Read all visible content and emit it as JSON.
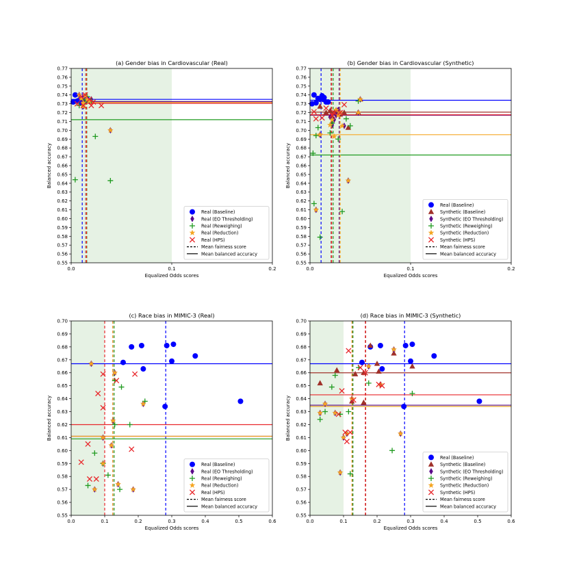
{
  "figure": {
    "legend_items": {
      "mean_fairness": "Mean fairness score",
      "mean_accuracy": "Mean balanced accuracy"
    }
  },
  "styles": {
    "real_baseline": {
      "color": "#0000ff",
      "marker": "circle"
    },
    "synthetic_baseline": {
      "color": "#a0312a",
      "marker": "triangle"
    },
    "eo_thresholding": {
      "color": "#5b0a8a",
      "marker": "diamond"
    },
    "reweighing": {
      "color": "#1f9a1f",
      "marker": "plus"
    },
    "reduction": {
      "color": "#f5a623",
      "marker": "star"
    },
    "hps": {
      "color": "#e8262a",
      "marker": "x"
    },
    "fair_zone": "#e6f2e4"
  },
  "chart_data": [
    {
      "type": "scatter",
      "title": "(a) Gender bias in Cardiovascular (Real)",
      "xlabel": "Equalized Odds scores",
      "ylabel": "Balanced accuracy",
      "xlim": [
        0,
        0.2
      ],
      "ylim": [
        0.55,
        0.77
      ],
      "xticks": [
        0,
        0.1,
        0.2
      ],
      "xtick_labels": [
        "0.0",
        "0.1",
        "0.2"
      ],
      "ytick_step": 0.01,
      "fair_zone_xmax": 0.1,
      "legend_position": "lower-right",
      "series": [
        {
          "name": "Real (Baseline)",
          "style": "real_baseline",
          "x": [
            0.002,
            0.004,
            0.006,
            0.009,
            0.012,
            0.014,
            0.016,
            0.008,
            0.01,
            0.013
          ],
          "y": [
            0.732,
            0.74,
            0.733,
            0.735,
            0.736,
            0.738,
            0.735,
            0.734,
            0.731,
            0.733
          ],
          "mean_x": 0.011,
          "mean_y": 0.735
        },
        {
          "name": "Real (EO Thresholding)",
          "style": "eo_thresholding",
          "x": [
            0.008,
            0.01,
            0.012,
            0.014,
            0.016,
            0.018,
            0.02,
            0.012,
            0.039
          ],
          "y": [
            0.74,
            0.736,
            0.733,
            0.738,
            0.735,
            0.733,
            0.735,
            0.727,
            0.7
          ],
          "mean_x": 0.0145,
          "mean_y": 0.7325
        },
        {
          "name": "Real (Reweighing)",
          "style": "reweighing",
          "x": [
            0.004,
            0.008,
            0.012,
            0.014,
            0.016,
            0.02,
            0.024,
            0.039
          ],
          "y": [
            0.644,
            0.728,
            0.735,
            0.732,
            0.738,
            0.733,
            0.693,
            0.643
          ],
          "mean_x": 0.0155,
          "mean_y": 0.712
        },
        {
          "name": "Real (Reduction)",
          "style": "reduction",
          "x": [
            0.008,
            0.01,
            0.012,
            0.014,
            0.016,
            0.018,
            0.012,
            0.039
          ],
          "y": [
            0.74,
            0.736,
            0.731,
            0.739,
            0.735,
            0.733,
            0.727,
            0.7
          ],
          "mean_x": 0.0148,
          "mean_y": 0.7315
        },
        {
          "name": "Real (HPS)",
          "style": "hps",
          "x": [
            0.006,
            0.01,
            0.012,
            0.014,
            0.018,
            0.02,
            0.022,
            0.03
          ],
          "y": [
            0.73,
            0.738,
            0.728,
            0.74,
            0.735,
            0.728,
            0.732,
            0.728
          ],
          "mean_x": 0.0152,
          "mean_y": 0.7305
        }
      ]
    },
    {
      "type": "scatter",
      "title": "(b) Gender bias in Cardiovascular (Synthetic)",
      "xlabel": "Equalized Odds scores",
      "ylabel": "Balanced accuracy",
      "xlim": [
        0,
        0.2
      ],
      "ylim": [
        0.55,
        0.77
      ],
      "xticks": [
        0,
        0.1,
        0.2
      ],
      "xtick_labels": [
        "0.0",
        "0.1",
        "0.2"
      ],
      "ytick_step": 0.01,
      "fair_zone_xmax": 0.1,
      "legend_position": "lower-right",
      "series": [
        {
          "name": "Real (Baseline)",
          "style": "real_baseline",
          "x": [
            0.002,
            0.004,
            0.006,
            0.01,
            0.012,
            0.014,
            0.016,
            0.018,
            0.008,
            0.013
          ],
          "y": [
            0.73,
            0.74,
            0.731,
            0.735,
            0.739,
            0.737,
            0.732,
            0.732,
            0.736,
            0.735
          ],
          "mean_x": 0.011,
          "mean_y": 0.734
        },
        {
          "name": "Synthetic (Baseline)",
          "style": "synthetic_baseline",
          "x": [
            0.01,
            0.016,
            0.02,
            0.022,
            0.024,
            0.026,
            0.028,
            0.03,
            0.034,
            0.038,
            0.048,
            0.05
          ],
          "y": [
            0.727,
            0.72,
            0.722,
            0.715,
            0.72,
            0.723,
            0.72,
            0.718,
            0.72,
            0.703,
            0.72,
            0.735
          ],
          "mean_x": 0.021,
          "mean_y": 0.7205
        },
        {
          "name": "Synthetic (EO Thresholding)",
          "style": "eo_thresholding",
          "x": [
            0.006,
            0.01,
            0.02,
            0.022,
            0.024,
            0.026,
            0.028,
            0.03,
            0.034,
            0.038,
            0.048,
            0.05
          ],
          "y": [
            0.61,
            0.695,
            0.715,
            0.706,
            0.712,
            0.717,
            0.723,
            0.72,
            0.705,
            0.643,
            0.72,
            0.735
          ],
          "mean_x": 0.029,
          "mean_y": 0.717
        },
        {
          "name": "Synthetic (Reweighing)",
          "style": "reweighing",
          "x": [
            0.003,
            0.004,
            0.006,
            0.008,
            0.01,
            0.02,
            0.022,
            0.028,
            0.032,
            0.036,
            0.04,
            0.048
          ],
          "y": [
            0.674,
            0.617,
            0.694,
            0.703,
            0.579,
            0.697,
            0.708,
            0.69,
            0.608,
            0.713,
            0.705,
            0.733
          ],
          "mean_x": 0.023,
          "mean_y": 0.672
        },
        {
          "name": "Synthetic (Reduction)",
          "style": "reduction",
          "x": [
            0.006,
            0.01,
            0.02,
            0.022,
            0.024,
            0.026,
            0.03,
            0.032,
            0.038,
            0.048,
            0.05,
            0.028
          ],
          "y": [
            0.61,
            0.695,
            0.706,
            0.712,
            0.693,
            0.723,
            0.72,
            0.705,
            0.643,
            0.72,
            0.735,
            0.717
          ],
          "mean_x": 0.03,
          "mean_y": 0.695
        },
        {
          "name": "Synthetic (HPS)",
          "style": "hps",
          "x": [
            0.004,
            0.006,
            0.012,
            0.016,
            0.022,
            0.024,
            0.03,
            0.034
          ],
          "y": [
            0.721,
            0.713,
            0.714,
            0.725,
            0.717,
            0.72,
            0.72,
            0.729
          ],
          "mean_x": 0.0215,
          "mean_y": 0.7175
        }
      ]
    },
    {
      "type": "scatter",
      "title": "(c) Race bias in MIMIC-3 (Real)",
      "xlabel": "Equalized Odds scores",
      "ylabel": "Balanced accuracy",
      "xlim": [
        0,
        0.6
      ],
      "ylim": [
        0.55,
        0.7
      ],
      "xticks": [
        0,
        0.1,
        0.2,
        0.3,
        0.4,
        0.5,
        0.6
      ],
      "xtick_labels": [
        "0.0",
        "0.1",
        "0.2",
        "0.3",
        "0.4",
        "0.5",
        "0.6"
      ],
      "ytick_step": 0.01,
      "fair_zone_xmax": 0.1,
      "legend_position": "lower-right",
      "series": [
        {
          "name": "Real (Baseline)",
          "style": "real_baseline",
          "x": [
            0.155,
            0.18,
            0.21,
            0.215,
            0.28,
            0.285,
            0.3,
            0.305,
            0.37,
            0.505
          ],
          "y": [
            0.668,
            0.68,
            0.681,
            0.663,
            0.634,
            0.681,
            0.669,
            0.682,
            0.673,
            0.638
          ],
          "mean_x": 0.282,
          "mean_y": 0.667
        },
        {
          "name": "Real (EO Thresholding)",
          "style": "eo_thresholding",
          "x": [
            0.06,
            0.07,
            0.095,
            0.095,
            0.12,
            0.125,
            0.13,
            0.14,
            0.215,
            0.185
          ],
          "y": [
            0.667,
            0.57,
            0.59,
            0.61,
            0.604,
            0.623,
            0.66,
            0.574,
            0.636,
            0.57
          ],
          "mean_x": 0.124,
          "mean_y": 0.611
        },
        {
          "name": "Real (Reweighing)",
          "style": "reweighing",
          "x": [
            0.05,
            0.07,
            0.11,
            0.13,
            0.145,
            0.15,
            0.175,
            0.22,
            0.13,
            0.095
          ],
          "y": [
            0.573,
            0.598,
            0.581,
            0.62,
            0.57,
            0.649,
            0.62,
            0.638,
            0.654,
            0.59
          ],
          "mean_x": 0.128,
          "mean_y": 0.609
        },
        {
          "name": "Real (Reduction)",
          "style": "reduction",
          "x": [
            0.06,
            0.07,
            0.095,
            0.095,
            0.12,
            0.125,
            0.13,
            0.14,
            0.215,
            0.185
          ],
          "y": [
            0.667,
            0.57,
            0.59,
            0.61,
            0.604,
            0.623,
            0.66,
            0.574,
            0.636,
            0.57
          ],
          "mean_x": 0.124,
          "mean_y": 0.611
        },
        {
          "name": "Real (HPS)",
          "style": "hps",
          "x": [
            0.03,
            0.05,
            0.055,
            0.075,
            0.08,
            0.095,
            0.095,
            0.135,
            0.18,
            0.19
          ],
          "y": [
            0.591,
            0.605,
            0.578,
            0.578,
            0.644,
            0.633,
            0.659,
            0.654,
            0.601,
            0.659
          ],
          "mean_x": 0.1,
          "mean_y": 0.62
        }
      ]
    },
    {
      "type": "scatter",
      "title": "(d) Race bias in MIMIC-3 (Synthetic)",
      "xlabel": "Equalized Odds scores",
      "ylabel": "Balanced accuracy",
      "xlim": [
        0,
        0.6
      ],
      "ylim": [
        0.55,
        0.7
      ],
      "xticks": [
        0,
        0.1,
        0.2,
        0.3,
        0.4,
        0.5,
        0.6
      ],
      "xtick_labels": [
        "0.0",
        "0.1",
        "0.2",
        "0.3",
        "0.4",
        "0.5",
        "0.6"
      ],
      "ytick_step": 0.01,
      "fair_zone_xmax": 0.1,
      "legend_position": "lower-right",
      "series": [
        {
          "name": "Real (Baseline)",
          "style": "real_baseline",
          "x": [
            0.155,
            0.18,
            0.21,
            0.215,
            0.28,
            0.285,
            0.3,
            0.305,
            0.37,
            0.505
          ],
          "y": [
            0.668,
            0.68,
            0.681,
            0.663,
            0.634,
            0.681,
            0.669,
            0.682,
            0.673,
            0.638
          ],
          "mean_x": 0.282,
          "mean_y": 0.667
        },
        {
          "name": "Synthetic (Baseline)",
          "style": "synthetic_baseline",
          "x": [
            0.03,
            0.08,
            0.125,
            0.135,
            0.16,
            0.16,
            0.18,
            0.2,
            0.205,
            0.25,
            0.305
          ],
          "y": [
            0.652,
            0.662,
            0.638,
            0.659,
            0.66,
            0.637,
            0.681,
            0.667,
            0.661,
            0.675,
            0.665
          ],
          "mean_x": 0.166,
          "mean_y": 0.66
        },
        {
          "name": "Synthetic (EO Thresholding)",
          "style": "eo_thresholding",
          "x": [
            0.03,
            0.045,
            0.075,
            0.09,
            0.1,
            0.11,
            0.125,
            0.175,
            0.21,
            0.25,
            0.27
          ],
          "y": [
            0.629,
            0.636,
            0.629,
            0.583,
            0.61,
            0.613,
            0.64,
            0.665,
            0.651,
            0.678,
            0.613
          ],
          "mean_x": 0.126,
          "mean_y": 0.635
        },
        {
          "name": "Synthetic (Reweighing)",
          "style": "reweighing",
          "x": [
            0.03,
            0.045,
            0.065,
            0.075,
            0.09,
            0.115,
            0.12,
            0.145,
            0.175,
            0.245,
            0.305
          ],
          "y": [
            0.624,
            0.63,
            0.649,
            0.658,
            0.628,
            0.63,
            0.582,
            0.664,
            0.652,
            0.6,
            0.644
          ],
          "mean_x": 0.128,
          "mean_y": 0.634
        },
        {
          "name": "Synthetic (Reduction)",
          "style": "reduction",
          "x": [
            0.03,
            0.045,
            0.075,
            0.09,
            0.1,
            0.11,
            0.125,
            0.175,
            0.21,
            0.25,
            0.27
          ],
          "y": [
            0.629,
            0.636,
            0.629,
            0.583,
            0.61,
            0.613,
            0.64,
            0.665,
            0.651,
            0.678,
            0.613
          ],
          "mean_x": 0.125,
          "mean_y": 0.634
        },
        {
          "name": "Synthetic (HPS)",
          "style": "hps",
          "x": [
            0.085,
            0.095,
            0.105,
            0.11,
            0.115,
            0.12,
            0.13,
            0.15,
            0.165,
            0.205,
            0.215
          ],
          "y": [
            0.628,
            0.646,
            0.614,
            0.607,
            0.677,
            0.614,
            0.639,
            0.664,
            0.66,
            0.651,
            0.65
          ],
          "mean_x": 0.165,
          "mean_y": 0.643
        }
      ]
    }
  ]
}
